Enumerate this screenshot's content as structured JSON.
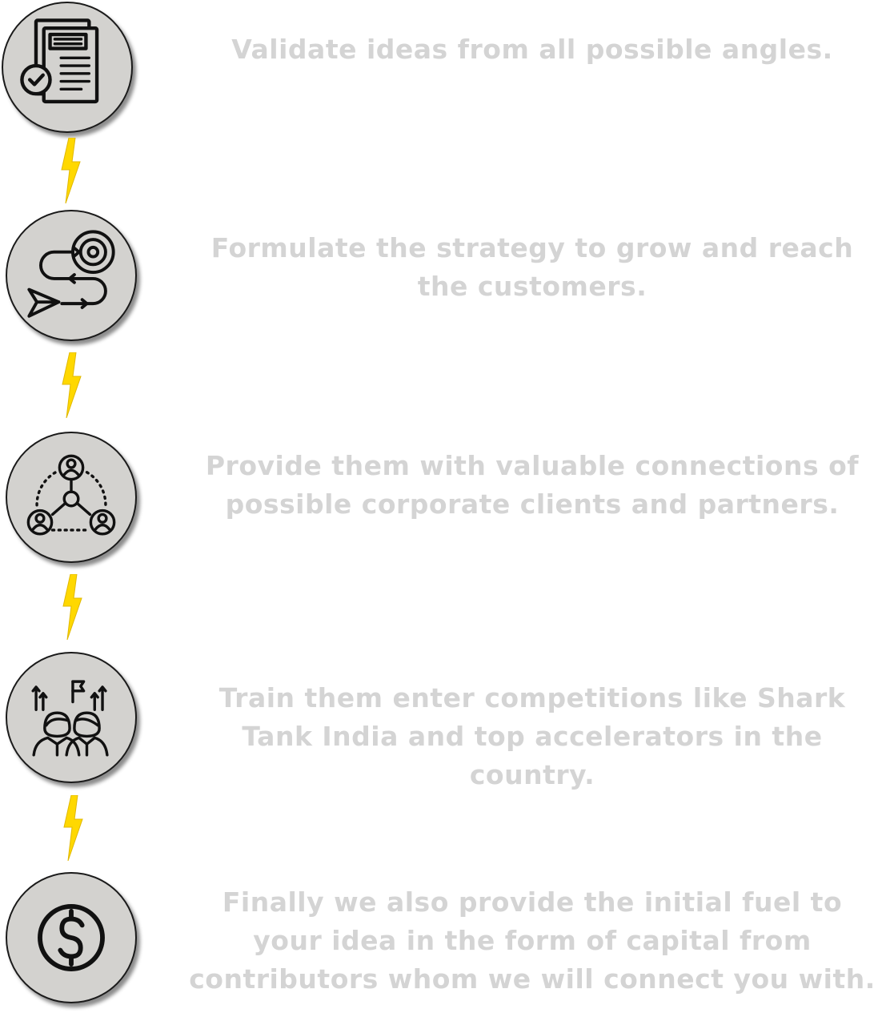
{
  "steps": [
    {
      "icon": "document-check-icon",
      "text": "Validate ideas from all possible angles."
    },
    {
      "icon": "strategy-target-icon",
      "text": "Formulate the strategy to grow and reach the customers."
    },
    {
      "icon": "network-connections-icon",
      "text": "Provide them with valuable connections of possible corporate clients and partners."
    },
    {
      "icon": "team-growth-icon",
      "text": "Train them enter competitions like Shark Tank India and top accelerators in the country."
    },
    {
      "icon": "dollar-coin-icon",
      "text": "Finally we also provide the initial fuel to your idea in the form of capital from contributors whom we will connect you with."
    }
  ],
  "connector_icon": "lightning-bolt-icon",
  "colors": {
    "circle_fill": "#d3d2cf",
    "text": "#d4d4d4",
    "bolt": "#ffd800",
    "icon_stroke": "#111111"
  }
}
